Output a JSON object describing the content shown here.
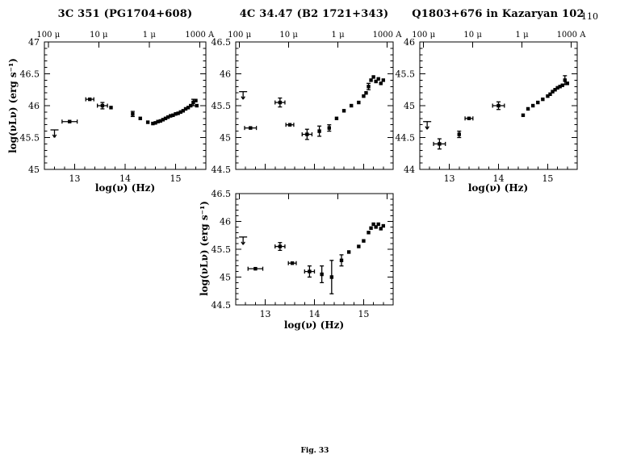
{
  "page": {
    "number": "110",
    "figure_caption": "Fig. 33"
  },
  "chart_data": [
    {
      "type": "scatter",
      "title": "3C 351 (PG1704+608)",
      "xlabel": "log(ν) (Hz)",
      "ylabel": "log(νLν) (erg s⁻¹)",
      "xlim": [
        12.4,
        15.6
      ],
      "ylim": [
        45.0,
        47.0
      ],
      "xticks": [
        13,
        14,
        15
      ],
      "yticks": [
        45,
        45.5,
        46,
        46.5,
        47
      ],
      "show_xtick_labels": true,
      "show_xlabel": true,
      "show_ylabel": true,
      "show_top_labels": true,
      "top_axis_labels": [
        {
          "text": "100 μ",
          "lognu": 12.477
        },
        {
          "text": "10 μ",
          "lognu": 13.477
        },
        {
          "text": "1 μ",
          "lognu": 14.477
        },
        {
          "text": "1000 A",
          "lognu": 15.477
        }
      ],
      "points": [
        {
          "x": 12.6,
          "y": 45.62,
          "ul": true
        },
        {
          "x": 12.9,
          "y": 45.75,
          "xe": 0.15
        },
        {
          "x": 13.3,
          "y": 46.1,
          "xe": 0.08
        },
        {
          "x": 13.55,
          "y": 46.0,
          "xe": 0.1,
          "ye": 0.05
        },
        {
          "x": 13.72,
          "y": 45.97
        },
        {
          "x": 14.15,
          "y": 45.87,
          "ye": 0.04
        },
        {
          "x": 14.3,
          "y": 45.8
        },
        {
          "x": 14.45,
          "y": 45.74
        },
        {
          "x": 14.55,
          "y": 45.72
        },
        {
          "x": 14.6,
          "y": 45.73
        },
        {
          "x": 14.65,
          "y": 45.75
        },
        {
          "x": 14.7,
          "y": 45.76
        },
        {
          "x": 14.75,
          "y": 45.78
        },
        {
          "x": 14.8,
          "y": 45.8
        },
        {
          "x": 14.85,
          "y": 45.82
        },
        {
          "x": 14.9,
          "y": 45.84
        },
        {
          "x": 14.95,
          "y": 45.85
        },
        {
          "x": 15.0,
          "y": 45.87
        },
        {
          "x": 15.05,
          "y": 45.88
        },
        {
          "x": 15.1,
          "y": 45.9
        },
        {
          "x": 15.15,
          "y": 45.92
        },
        {
          "x": 15.2,
          "y": 45.95
        },
        {
          "x": 15.25,
          "y": 45.97
        },
        {
          "x": 15.3,
          "y": 46.0
        },
        {
          "x": 15.35,
          "y": 46.05,
          "ye": 0.05
        },
        {
          "x": 15.4,
          "y": 46.08
        },
        {
          "x": 15.42,
          "y": 46.0
        }
      ]
    },
    {
      "type": "scatter",
      "title": "4C 34.47 (B2 1721+343)",
      "xlabel": "log(ν) (Hz)",
      "ylabel": "log(νLν) (erg s⁻¹)",
      "xlim": [
        12.4,
        15.6
      ],
      "ylim": [
        44.5,
        46.5
      ],
      "xticks": [
        13,
        14,
        15
      ],
      "yticks": [
        44.5,
        45,
        45.5,
        46,
        46.5
      ],
      "show_xtick_labels": false,
      "show_xlabel": false,
      "show_ylabel": false,
      "show_top_labels": true,
      "top_axis_labels": [
        {
          "text": "100 μ",
          "lognu": 12.477
        },
        {
          "text": "10 μ",
          "lognu": 13.477
        },
        {
          "text": "1 μ",
          "lognu": 14.477
        },
        {
          "text": "1000 A",
          "lognu": 15.477
        }
      ],
      "points": [
        {
          "x": 12.55,
          "y": 45.72,
          "ul": true
        },
        {
          "x": 12.7,
          "y": 45.15,
          "xe": 0.12
        },
        {
          "x": 13.3,
          "y": 45.55,
          "xe": 0.1,
          "ye": 0.07
        },
        {
          "x": 13.5,
          "y": 45.2,
          "xe": 0.08
        },
        {
          "x": 13.85,
          "y": 45.05,
          "xe": 0.1,
          "ye": 0.08
        },
        {
          "x": 14.1,
          "y": 45.1,
          "ye": 0.08
        },
        {
          "x": 14.3,
          "y": 45.15,
          "ye": 0.05
        },
        {
          "x": 14.45,
          "y": 45.3
        },
        {
          "x": 14.6,
          "y": 45.42
        },
        {
          "x": 14.75,
          "y": 45.5
        },
        {
          "x": 14.9,
          "y": 45.55
        },
        {
          "x": 15.0,
          "y": 45.65
        },
        {
          "x": 15.05,
          "y": 45.7
        },
        {
          "x": 15.1,
          "y": 45.8,
          "ye": 0.05
        },
        {
          "x": 15.15,
          "y": 45.9
        },
        {
          "x": 15.2,
          "y": 45.95
        },
        {
          "x": 15.25,
          "y": 45.88
        },
        {
          "x": 15.3,
          "y": 45.92
        },
        {
          "x": 15.35,
          "y": 45.85
        },
        {
          "x": 15.4,
          "y": 45.9
        }
      ]
    },
    {
      "type": "scatter",
      "title": "Q1803+676 in Kazaryan 102",
      "xlabel": "log(ν) (Hz)",
      "ylabel": "log(νLν) (erg s⁻¹)",
      "xlim": [
        12.4,
        15.6
      ],
      "ylim": [
        44.0,
        46.0
      ],
      "xticks": [
        13,
        14,
        15
      ],
      "yticks": [
        44,
        44.5,
        45,
        45.5,
        46
      ],
      "show_xtick_labels": true,
      "show_xlabel": true,
      "show_ylabel": false,
      "show_top_labels": true,
      "top_axis_labels": [
        {
          "text": "100 μ",
          "lognu": 12.477
        },
        {
          "text": "10 μ",
          "lognu": 13.477
        },
        {
          "text": "1 μ",
          "lognu": 14.477
        },
        {
          "text": "1000 A",
          "lognu": 15.477
        }
      ],
      "points": [
        {
          "x": 12.55,
          "y": 44.75,
          "ul": true
        },
        {
          "x": 12.8,
          "y": 44.4,
          "xe": 0.12,
          "ye": 0.08
        },
        {
          "x": 13.2,
          "y": 44.55,
          "ye": 0.05
        },
        {
          "x": 13.4,
          "y": 44.8,
          "xe": 0.08
        },
        {
          "x": 14.0,
          "y": 45.0,
          "xe": 0.12,
          "ye": 0.06
        },
        {
          "x": 14.5,
          "y": 44.85
        },
        {
          "x": 14.6,
          "y": 44.95
        },
        {
          "x": 14.7,
          "y": 45.0
        },
        {
          "x": 14.8,
          "y": 45.05
        },
        {
          "x": 14.9,
          "y": 45.1
        },
        {
          "x": 15.0,
          "y": 45.15
        },
        {
          "x": 15.05,
          "y": 45.18
        },
        {
          "x": 15.1,
          "y": 45.22
        },
        {
          "x": 15.15,
          "y": 45.25
        },
        {
          "x": 15.2,
          "y": 45.28
        },
        {
          "x": 15.25,
          "y": 45.3
        },
        {
          "x": 15.3,
          "y": 45.32
        },
        {
          "x": 15.35,
          "y": 45.4,
          "ye": 0.07
        },
        {
          "x": 15.4,
          "y": 45.35
        }
      ]
    },
    {
      "type": "scatter",
      "title": "",
      "xlabel": "log(ν) (Hz)",
      "ylabel": "log(νLν) (erg s⁻¹)",
      "xlim": [
        12.4,
        15.6
      ],
      "ylim": [
        44.5,
        46.5
      ],
      "xticks": [
        13,
        14,
        15
      ],
      "yticks": [
        44.5,
        45,
        45.5,
        46,
        46.5
      ],
      "show_xtick_labels": true,
      "show_xlabel": true,
      "show_ylabel": true,
      "show_top_labels": false,
      "top_axis_labels": [
        {
          "text": "100 μ",
          "lognu": 12.477
        },
        {
          "text": "10 μ",
          "lognu": 13.477
        },
        {
          "text": "1 μ",
          "lognu": 14.477
        },
        {
          "text": "1000 A",
          "lognu": 15.477
        }
      ],
      "points": [
        {
          "x": 12.55,
          "y": 45.72,
          "ul": true
        },
        {
          "x": 12.8,
          "y": 45.15,
          "xe": 0.15
        },
        {
          "x": 13.3,
          "y": 45.55,
          "xe": 0.1,
          "ye": 0.07
        },
        {
          "x": 13.55,
          "y": 45.25,
          "xe": 0.08
        },
        {
          "x": 13.9,
          "y": 45.1,
          "xe": 0.1,
          "ye": 0.1
        },
        {
          "x": 14.15,
          "y": 45.05,
          "ye": 0.15
        },
        {
          "x": 14.35,
          "y": 45.0,
          "ye": 0.3
        },
        {
          "x": 14.55,
          "y": 45.3,
          "ye": 0.1
        },
        {
          "x": 14.7,
          "y": 45.45
        },
        {
          "x": 14.9,
          "y": 45.55
        },
        {
          "x": 15.0,
          "y": 45.65
        },
        {
          "x": 15.1,
          "y": 45.8
        },
        {
          "x": 15.15,
          "y": 45.88
        },
        {
          "x": 15.2,
          "y": 45.95
        },
        {
          "x": 15.25,
          "y": 45.9
        },
        {
          "x": 15.3,
          "y": 45.95
        },
        {
          "x": 15.35,
          "y": 45.87
        },
        {
          "x": 15.4,
          "y": 45.92
        }
      ]
    }
  ]
}
